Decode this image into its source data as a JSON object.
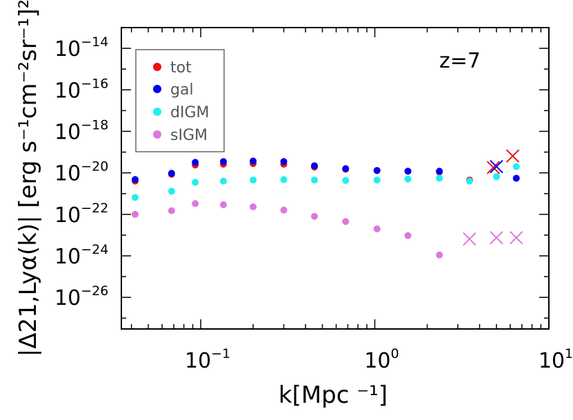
{
  "chart_data": {
    "type": "scatter",
    "xscale": "log",
    "yscale": "log",
    "xlim": [
      0.035,
      10
    ],
    "ylim": [
      3e-28,
      1e-13
    ],
    "x_ticks": [
      {
        "value": 0.1,
        "base": "10",
        "exp": "−1"
      },
      {
        "value": 1,
        "base": "10",
        "exp": "0"
      },
      {
        "value": 10,
        "base": "10",
        "exp": "1"
      }
    ],
    "y_ticks": [
      {
        "value": 1e-14,
        "base": "10",
        "exp": "−14"
      },
      {
        "value": 1e-16,
        "base": "10",
        "exp": "−16"
      },
      {
        "value": 1e-18,
        "base": "10",
        "exp": "−18"
      },
      {
        "value": 1e-20,
        "base": "10",
        "exp": "−20"
      },
      {
        "value": 1e-22,
        "base": "10",
        "exp": "−22"
      },
      {
        "value": 1e-24,
        "base": "10",
        "exp": "−24"
      },
      {
        "value": 1e-26,
        "base": "10",
        "exp": "−26"
      }
    ],
    "xlabel": "k[Mpc ⁻¹]",
    "ylabel": "|Δ21,Lyα(k)| [erg s⁻¹cm⁻²sr⁻¹]²",
    "annotation": "z=7",
    "legend_position": "top-left",
    "series": [
      {
        "name": "tot",
        "color": "#ee1111",
        "points": [
          [
            0.042,
            4e-21
          ],
          [
            0.068,
            8.5e-21
          ],
          [
            0.093,
            2.4e-20
          ],
          [
            0.135,
            2.6e-20
          ],
          [
            0.2,
            2.8e-20
          ],
          [
            0.3,
            2.6e-20
          ],
          [
            0.45,
            1.9e-20
          ],
          [
            0.68,
            1.5e-20
          ],
          [
            1.03,
            1.3e-20
          ],
          [
            1.55,
            1.2e-20
          ],
          [
            2.35,
            1.1e-20
          ],
          [
            3.5,
            4.5e-21
          ]
        ],
        "crosses": [
          [
            4.8,
            1.8e-20
          ],
          [
            6.2,
            6.5e-20
          ]
        ]
      },
      {
        "name": "gal",
        "color": "#0000ee",
        "points": [
          [
            0.042,
            4.8e-21
          ],
          [
            0.068,
            9.5e-21
          ],
          [
            0.093,
            3.2e-20
          ],
          [
            0.135,
            3.5e-20
          ],
          [
            0.2,
            3.7e-20
          ],
          [
            0.3,
            3.5e-20
          ],
          [
            0.45,
            2.2e-20
          ],
          [
            0.68,
            1.6e-20
          ],
          [
            1.03,
            1.3e-20
          ],
          [
            1.55,
            1.2e-20
          ],
          [
            2.35,
            1.2e-20
          ],
          [
            6.5,
            5.5e-21
          ]
        ],
        "crosses": [
          [
            5.0,
            2e-20
          ]
        ]
      },
      {
        "name": "dIGM",
        "color": "#22eeee",
        "points": [
          [
            0.042,
            6.5e-22
          ],
          [
            0.068,
            1.3e-21
          ],
          [
            0.093,
            3.5e-21
          ],
          [
            0.135,
            4e-21
          ],
          [
            0.2,
            4.5e-21
          ],
          [
            0.3,
            4.7e-21
          ],
          [
            0.45,
            4.5e-21
          ],
          [
            0.68,
            4.3e-21
          ],
          [
            1.03,
            4.5e-21
          ],
          [
            1.55,
            5e-21
          ],
          [
            2.35,
            5.5e-21
          ],
          [
            3.5,
            4e-21
          ],
          [
            5.0,
            6.5e-21
          ],
          [
            6.5,
            2e-20
          ]
        ],
        "crosses": []
      },
      {
        "name": "sIGM",
        "color": "#dd77dd",
        "points": [
          [
            0.042,
            1e-22
          ],
          [
            0.068,
            1.5e-22
          ],
          [
            0.093,
            3.3e-22
          ],
          [
            0.135,
            2.9e-22
          ],
          [
            0.2,
            2.3e-22
          ],
          [
            0.3,
            1.6e-22
          ],
          [
            0.45,
            8e-23
          ],
          [
            0.68,
            4.5e-23
          ],
          [
            1.03,
            2e-23
          ],
          [
            1.55,
            9.5e-24
          ],
          [
            2.35,
            1.1e-24
          ]
        ],
        "crosses": [
          [
            3.5,
            6.5e-24
          ],
          [
            5.0,
            7.5e-24
          ],
          [
            6.5,
            7.5e-24
          ]
        ]
      }
    ]
  }
}
